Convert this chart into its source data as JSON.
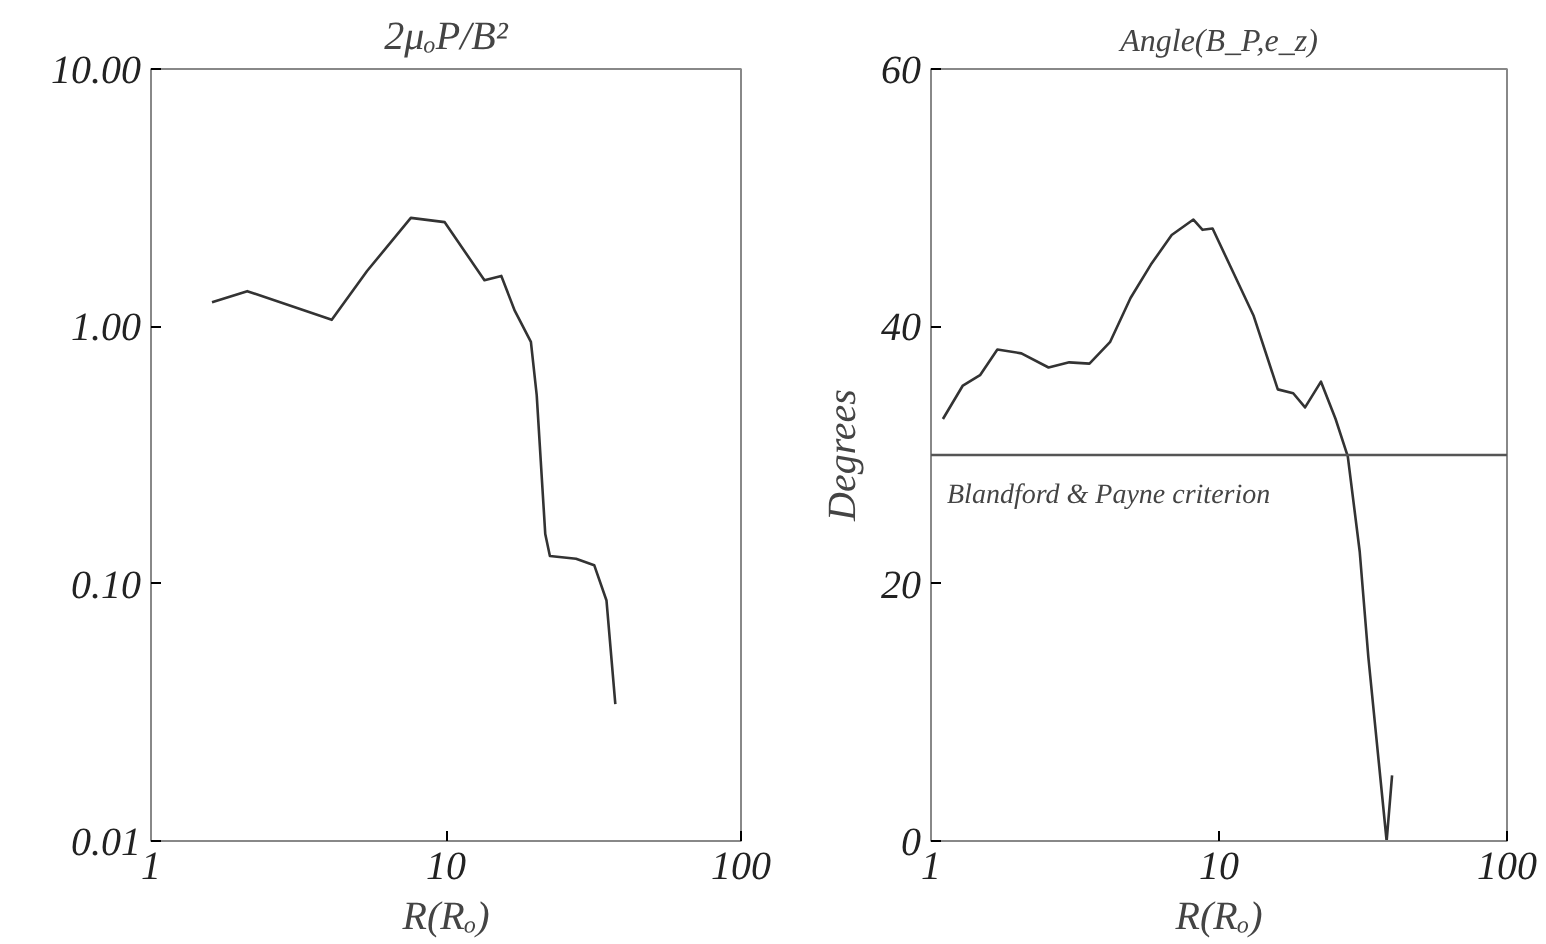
{
  "chart_data": [
    {
      "type": "line",
      "title": "2μₒP/B²",
      "xlabel": "R(Rₒ)",
      "log": "xy",
      "grid": false,
      "xlim": [
        1,
        100
      ],
      "xticks": [
        1,
        10,
        100
      ],
      "ylim": [
        0.01,
        10
      ],
      "yticks": [
        {
          "value": 0.01,
          "label": "0.01"
        },
        {
          "value": 0.1,
          "label": "0.10"
        },
        {
          "value": 1,
          "label": "1.00"
        },
        {
          "value": 10,
          "label": "10.00"
        }
      ],
      "series": [
        {
          "color": "#333333",
          "x": [
            1.61,
            2.12,
            4.1,
            5.4,
            7.6,
            9.9,
            13.5,
            15.4,
            17.1,
            19.4,
            20.3,
            21.7,
            22.5,
            27.6,
            31.8,
            35,
            37.5
          ],
          "values": [
            1.24,
            1.37,
            1.06,
            1.64,
            2.64,
            2.54,
            1.51,
            1.57,
            1.15,
            0.87,
            0.54,
            0.156,
            0.128,
            0.125,
            0.118,
            0.086,
            0.034
          ]
        }
      ]
    },
    {
      "type": "line",
      "title": "Angle(B_P,e_z)",
      "xlabel": "R(Rₒ)",
      "ylabel": "Degrees",
      "log": "x",
      "grid": false,
      "xlim": [
        1,
        100
      ],
      "xticks": [
        1,
        10,
        100
      ],
      "ylim": [
        0,
        60
      ],
      "yticks": [
        0,
        20,
        40,
        60
      ],
      "ref_lines": [
        {
          "axis": "y",
          "value": 30,
          "label": "Blandford & Payne criterion",
          "color": "#555555"
        }
      ],
      "series": [
        {
          "color": "#333333",
          "x": [
            1.1,
            1.29,
            1.48,
            1.7,
            2.06,
            2.56,
            3.02,
            3.55,
            4.19,
            4.93,
            5.8,
            6.85,
            8.15,
            8.77,
            9.5,
            11.2,
            13.2,
            16.0,
            18.1,
            19.9,
            22.6,
            25.4,
            28.0,
            30.8,
            33.0,
            38.2,
            39.9
          ],
          "values": [
            32.8,
            35.4,
            36.2,
            38.2,
            37.9,
            36.8,
            37.2,
            37.1,
            38.8,
            42.2,
            44.8,
            47.1,
            48.3,
            47.5,
            47.6,
            44.2,
            40.8,
            35.1,
            34.8,
            33.7,
            35.7,
            32.8,
            29.9,
            22.5,
            14.3,
            0,
            5.1
          ]
        }
      ]
    }
  ]
}
